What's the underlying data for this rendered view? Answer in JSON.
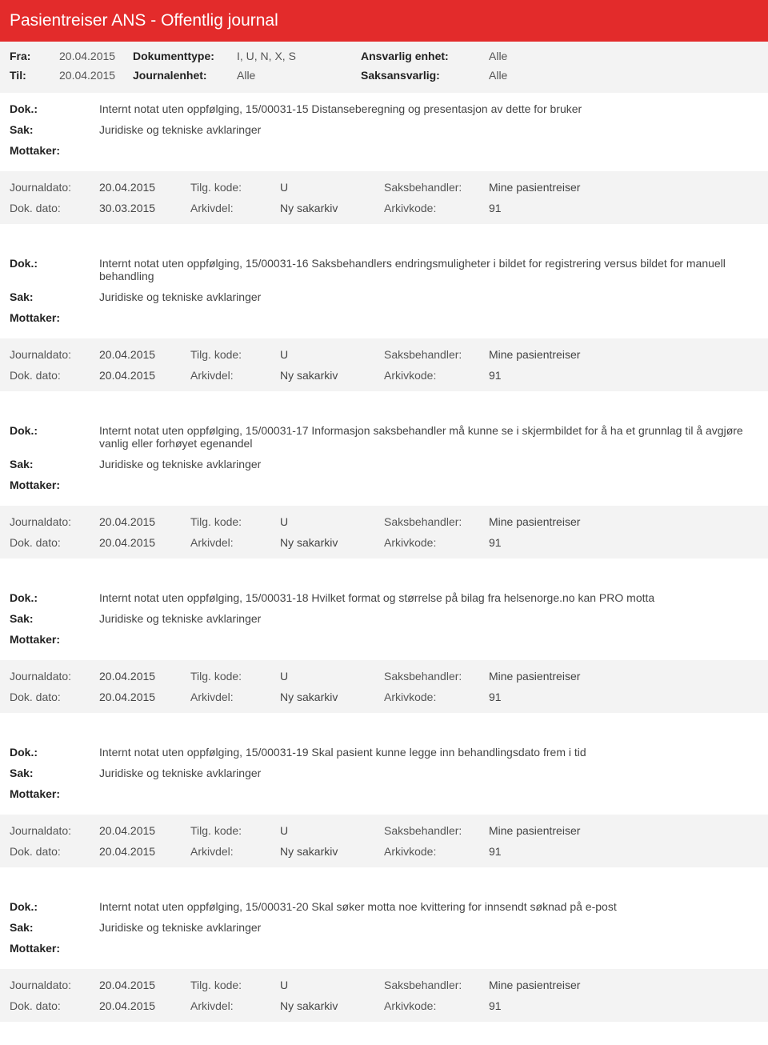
{
  "title": "Pasientreiser ANS - Offentlig journal",
  "filters": {
    "fra_label": "Fra:",
    "fra_value": "20.04.2015",
    "til_label": "Til:",
    "til_value": "20.04.2015",
    "dokumenttype_label": "Dokumenttype:",
    "dokumenttype_value": "I, U, N, X, S",
    "journalenhet_label": "Journalenhet:",
    "journalenhet_value": "Alle",
    "ansvarlig_label": "Ansvarlig enhet:",
    "ansvarlig_value": "Alle",
    "saksansvarlig_label": "Saksansvarlig:",
    "saksansvarlig_value": "Alle"
  },
  "labels": {
    "dok": "Dok.:",
    "sak": "Sak:",
    "mottaker": "Mottaker:",
    "journaldato": "Journaldato:",
    "dokdato": "Dok. dato:",
    "tilgkode": "Tilg. kode:",
    "arkivdel": "Arkivdel:",
    "saksbehandler": "Saksbehandler:",
    "arkivkode": "Arkivkode:"
  },
  "entries": [
    {
      "dok": "Internt notat uten oppfølging, 15/00031-15 Distanseberegning og presentasjon av dette for bruker",
      "sak": "Juridiske og tekniske avklaringer",
      "mottaker": "",
      "journaldato": "20.04.2015",
      "dokdato": "30.03.2015",
      "tilgkode": "U",
      "arkivdel": "Ny sakarkiv",
      "saksbehandler": "Mine pasientreiser",
      "arkivkode": "91"
    },
    {
      "dok": "Internt notat uten oppfølging, 15/00031-16 Saksbehandlers endringsmuligheter i bildet for registrering versus bildet for manuell behandling",
      "sak": "Juridiske og tekniske avklaringer",
      "mottaker": "",
      "journaldato": "20.04.2015",
      "dokdato": "20.04.2015",
      "tilgkode": "U",
      "arkivdel": "Ny sakarkiv",
      "saksbehandler": "Mine pasientreiser",
      "arkivkode": "91"
    },
    {
      "dok": "Internt notat uten oppfølging, 15/00031-17 Informasjon saksbehandler må kunne se i skjermbildet for å ha et grunnlag til å avgjøre vanlig eller forhøyet egenandel",
      "sak": "Juridiske og tekniske avklaringer",
      "mottaker": "",
      "journaldato": "20.04.2015",
      "dokdato": "20.04.2015",
      "tilgkode": "U",
      "arkivdel": "Ny sakarkiv",
      "saksbehandler": "Mine pasientreiser",
      "arkivkode": "91"
    },
    {
      "dok": "Internt notat uten oppfølging, 15/00031-18 Hvilket format og størrelse på bilag fra helsenorge.no kan PRO motta",
      "sak": "Juridiske og tekniske avklaringer",
      "mottaker": "",
      "journaldato": "20.04.2015",
      "dokdato": "20.04.2015",
      "tilgkode": "U",
      "arkivdel": "Ny sakarkiv",
      "saksbehandler": "Mine pasientreiser",
      "arkivkode": "91"
    },
    {
      "dok": "Internt notat uten oppfølging, 15/00031-19 Skal pasient kunne legge inn behandlingsdato frem i tid",
      "sak": "Juridiske og tekniske avklaringer",
      "mottaker": "",
      "journaldato": "20.04.2015",
      "dokdato": "20.04.2015",
      "tilgkode": "U",
      "arkivdel": "Ny sakarkiv",
      "saksbehandler": "Mine pasientreiser",
      "arkivkode": "91"
    },
    {
      "dok": "Internt notat uten oppfølging, 15/00031-20 Skal søker motta noe kvittering for innsendt søknad på e-post",
      "sak": "Juridiske og tekniske avklaringer",
      "mottaker": "",
      "journaldato": "20.04.2015",
      "dokdato": "20.04.2015",
      "tilgkode": "U",
      "arkivdel": "Ny sakarkiv",
      "saksbehandler": "Mine pasientreiser",
      "arkivkode": "91"
    }
  ]
}
